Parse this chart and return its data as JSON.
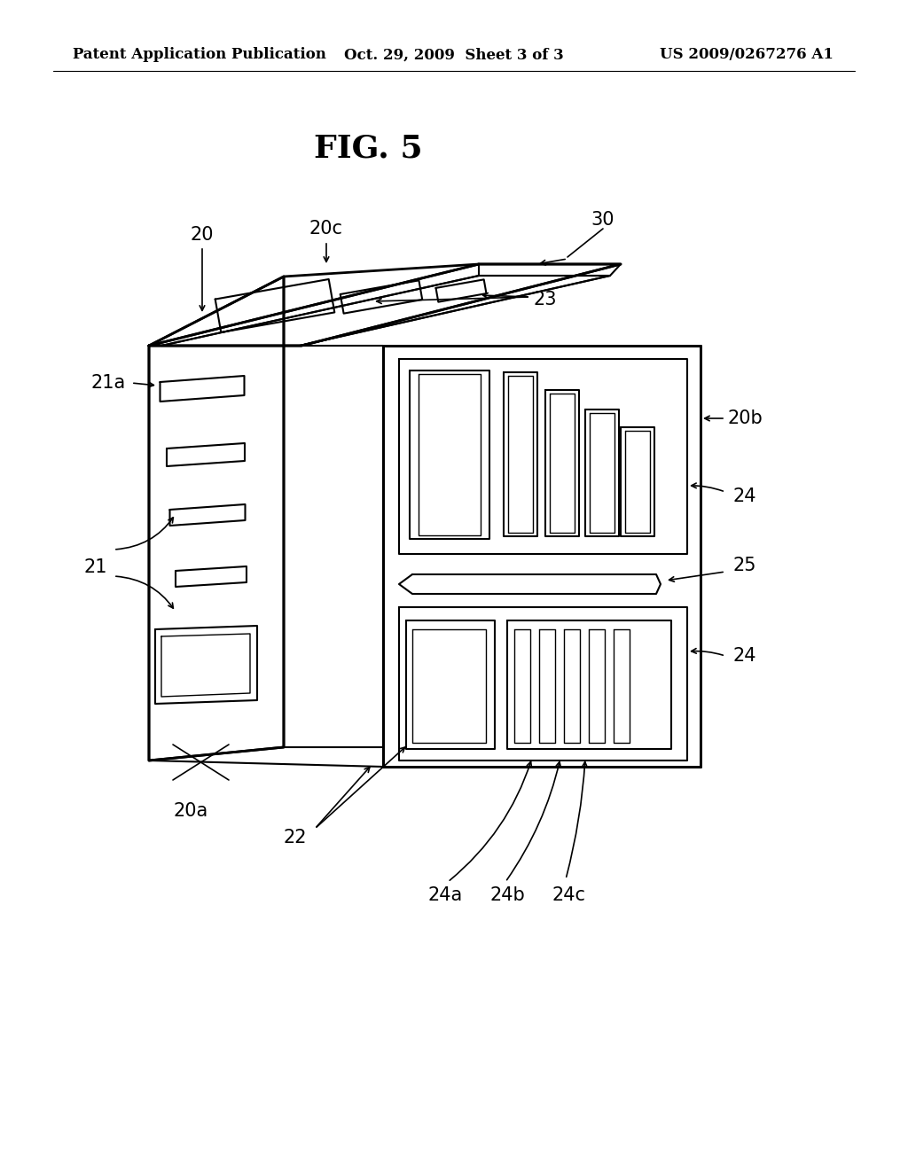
{
  "title": "FIG. 5",
  "header_left": "Patent Application Publication",
  "header_center": "Oct. 29, 2009  Sheet 3 of 3",
  "header_right": "US 2009/0267276 A1",
  "background_color": "#ffffff",
  "line_color": "#000000",
  "fig_title_fontsize": 26,
  "header_fontsize": 12,
  "label_fontsize": 15
}
